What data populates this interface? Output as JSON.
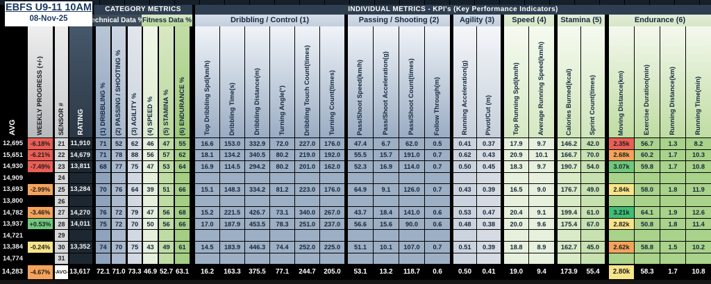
{
  "card": {
    "title": "EBFS U9-11 10AM",
    "date": "08-Nov-25"
  },
  "headers": {
    "category_metrics": "CATEGORY  METRICS",
    "individual_metrics": "INDIVIDUAL METRICS - KPI's (Key Performance Indicators)",
    "technical_data": "Technical Data %",
    "fitness_data": "Fitness Data %"
  },
  "groups": [
    {
      "id": "dribbling",
      "label": "Dribbling / Control (1)"
    },
    {
      "id": "passing",
      "label": "Passing / Shooting (2)"
    },
    {
      "id": "agility",
      "label": "Agility (3)"
    },
    {
      "id": "speed",
      "label": "Speed (4)"
    },
    {
      "id": "stamina",
      "label": "Stamina (5)"
    },
    {
      "id": "endurance",
      "label": "Endurance (6)"
    }
  ],
  "left_columns": {
    "avg_label": "AVG",
    "progress_label": "WEEKLY PROGRESS (+/-)",
    "sensor_label": "SENSOR #",
    "rating_label": "RATING"
  },
  "columns": [
    {
      "id": "dribbling_pct",
      "label": "(1) DRIBBLING %"
    },
    {
      "id": "passing_pct",
      "label": "(2) PASSING / SHOOTING %"
    },
    {
      "id": "agility_pct",
      "label": "(3) AGILITY %"
    },
    {
      "id": "speed_pct",
      "label": "(4) SPEED %"
    },
    {
      "id": "stamina_pct",
      "label": "(5) STAMINA %"
    },
    {
      "id": "endurance_pct",
      "label": "(6) ENDURANCE %"
    },
    {
      "id": "top_drib_spd",
      "label": "Top Dribbling Spd(km/h)"
    },
    {
      "id": "drib_time",
      "label": "Dribbling Time(s)"
    },
    {
      "id": "drib_dist",
      "label": "Dribbling Distance(m)"
    },
    {
      "id": "turn_angle",
      "label": "Turning Angle(°)"
    },
    {
      "id": "touch_count",
      "label": "Dribbling Touch Count(times)"
    },
    {
      "id": "turn_count",
      "label": "Turning Count(times)"
    },
    {
      "id": "pass_speed",
      "label": "Pass/Shoot Speed(km/h)"
    },
    {
      "id": "pass_accel",
      "label": "Pass/Shoot Acceleration(g)"
    },
    {
      "id": "pass_count",
      "label": "Pass/Shoot Count(times)"
    },
    {
      "id": "follow_through",
      "label": "Follow Through(m)"
    },
    {
      "id": "run_accel",
      "label": "Running Acceleration(g)"
    },
    {
      "id": "pivot_cut",
      "label": "Pivot/Cut (m)"
    },
    {
      "id": "top_run_spd",
      "label": "Top Running Spd(km/h)"
    },
    {
      "id": "avg_run_spd",
      "label": "Average Running Speed(km/h)"
    },
    {
      "id": "calories",
      "label": "Calories Burned(kcal)"
    },
    {
      "id": "sprint_count",
      "label": "Sprint Count(times)"
    },
    {
      "id": "moving_dist",
      "label": "Moving Distance(km)"
    },
    {
      "id": "ex_duration",
      "label": "Exercise Duration(min)"
    },
    {
      "id": "run_dist",
      "label": "Running Distance(km)"
    },
    {
      "id": "run_time",
      "label": "Running Time(min)"
    }
  ],
  "rows": [
    {
      "avg": "12,695",
      "progress": "-6.18%",
      "progress_status": "red",
      "sensor": "21",
      "rating": "11,910",
      "moving_status": "red",
      "values": [
        "71",
        "52",
        "62",
        "46",
        "47",
        "55",
        "16.6",
        "153.0",
        "332.9",
        "72.0",
        "227.0",
        "176.0",
        "47.4",
        "6.7",
        "62.0",
        "0.5",
        "0.41",
        "0.37",
        "17.9",
        "9.7",
        "146.2",
        "42.0",
        "2.35k",
        "56.7",
        "1.3",
        "8.2"
      ]
    },
    {
      "avg": "15,651",
      "progress": "-6.21%",
      "progress_status": "red",
      "sensor": "22",
      "rating": "14,679",
      "moving_status": "orange",
      "values": [
        "71",
        "78",
        "88",
        "56",
        "57",
        "62",
        "18.1",
        "134.2",
        "340.5",
        "80.2",
        "219.0",
        "192.0",
        "55.5",
        "15.7",
        "191.0",
        "0.7",
        "0.62",
        "0.43",
        "20.9",
        "10.1",
        "166.7",
        "70.0",
        "2.68k",
        "60.2",
        "1.7",
        "10.3"
      ]
    },
    {
      "avg": "14,930",
      "progress": "-7.49%",
      "progress_status": "red",
      "sensor": "23",
      "rating": "13,811",
      "moving_status": "green",
      "values": [
        "68",
        "77",
        "75",
        "47",
        "53",
        "64",
        "16.9",
        "114.5",
        "294.2",
        "80.2",
        "201.0",
        "162.0",
        "52.3",
        "16.9",
        "114.0",
        "0.7",
        "0.50",
        "0.45",
        "18.3",
        "9.7",
        "190.7",
        "54.0",
        "3.07k",
        "59.8",
        "1.7",
        "10.8"
      ]
    },
    {
      "avg": "14,909",
      "progress": "",
      "progress_status": "",
      "sensor": "24",
      "rating": "",
      "moving_status": "",
      "values": [
        "",
        "",
        "",
        "",
        "",
        "",
        "",
        "",
        "",
        "",
        "",
        "",
        "",
        "",
        "",
        "",
        "",
        "",
        "",
        "",
        "",
        "",
        "",
        "",
        "",
        ""
      ]
    },
    {
      "avg": "13,693",
      "progress": "-2.99%",
      "progress_status": "orange",
      "sensor": "25",
      "rating": "13,284",
      "moving_status": "yellow",
      "values": [
        "70",
        "76",
        "64",
        "39",
        "51",
        "66",
        "15.1",
        "148.3",
        "334.2",
        "81.2",
        "223.0",
        "176.0",
        "64.9",
        "9.1",
        "126.0",
        "0.7",
        "0.43",
        "0.39",
        "16.5",
        "9.0",
        "176.7",
        "49.0",
        "2.84k",
        "58.0",
        "1.8",
        "11.9"
      ]
    },
    {
      "avg": "13,800",
      "progress": "",
      "progress_status": "",
      "sensor": "26",
      "rating": "",
      "moving_status": "",
      "values": [
        "",
        "",
        "",
        "",
        "",
        "",
        "",
        "",
        "",
        "",
        "",
        "",
        "",
        "",
        "",
        "",
        "",
        "",
        "",
        "",
        "",
        "",
        "",
        "",
        "",
        ""
      ]
    },
    {
      "avg": "14,782",
      "progress": "-3.46%",
      "progress_status": "orange",
      "sensor": "27",
      "rating": "14,270",
      "moving_status": "strong_green",
      "values": [
        "76",
        "72",
        "79",
        "47",
        "56",
        "68",
        "15.2",
        "221.5",
        "426.7",
        "73.1",
        "340.0",
        "267.0",
        "43.7",
        "18.4",
        "141.0",
        "0.6",
        "0.53",
        "0.47",
        "20.4",
        "9.1",
        "199.4",
        "61.0",
        "3.21k",
        "64.1",
        "1.9",
        "12.6"
      ]
    },
    {
      "avg": "13,937",
      "progress": "+0.53%",
      "progress_status": "green",
      "sensor": "28",
      "rating": "14,011",
      "moving_status": "yellow",
      "values": [
        "75",
        "72",
        "70",
        "50",
        "56",
        "66",
        "17.0",
        "187.9",
        "453.5",
        "78.3",
        "251.0",
        "237.0",
        "56.6",
        "15.6",
        "90.0",
        "0.6",
        "0.48",
        "0.38",
        "20.0",
        "9.6",
        "175.4",
        "67.0",
        "2.82k",
        "50.8",
        "1.8",
        "11.4"
      ]
    },
    {
      "avg": "14,721",
      "progress": "",
      "progress_status": "",
      "sensor": "29",
      "rating": "",
      "moving_status": "",
      "values": [
        "",
        "",
        "",
        "",
        "",
        "",
        "",
        "",
        "",
        "",
        "",
        "",
        "",
        "",
        "",
        "",
        "",
        "",
        "",
        "",
        "",
        "",
        "",
        "",
        "",
        ""
      ]
    },
    {
      "avg": "13,384",
      "progress": "-0.24%",
      "progress_status": "yellow",
      "sensor": "30",
      "rating": "13,352",
      "moving_status": "orange",
      "values": [
        "74",
        "70",
        "75",
        "43",
        "49",
        "61",
        "14.5",
        "183.9",
        "446.3",
        "74.4",
        "252.0",
        "225.0",
        "51.1",
        "10.1",
        "107.0",
        "0.7",
        "0.51",
        "0.39",
        "18.8",
        "8.9",
        "162.7",
        "45.0",
        "2.62k",
        "58.8",
        "1.5",
        "10.2"
      ]
    },
    {
      "avg": "14,774",
      "progress": "",
      "progress_status": "",
      "sensor": "31",
      "rating": "",
      "moving_status": "",
      "values": [
        "",
        "",
        "",
        "",
        "",
        "",
        "",
        "",
        "",
        "",
        "",
        "",
        "",
        "",
        "",
        "",
        "",
        "",
        "",
        "",
        "",
        "",
        "",
        "",
        "",
        ""
      ]
    }
  ],
  "avg_row": {
    "avg": "14,283",
    "progress": "-4.67%",
    "progress_status": "orange",
    "sensor": "-AVG-",
    "rating": "13,617",
    "moving_status": "yellow",
    "values": [
      "72.1",
      "71.0",
      "73.3",
      "46.9",
      "52.7",
      "63.1",
      "16.2",
      "163.3",
      "375.5",
      "77.1",
      "244.7",
      "205.0",
      "53.1",
      "13.2",
      "118.7",
      "0.6",
      "0.50",
      "0.41",
      "19.0",
      "9.4",
      "173.9",
      "55.4",
      "2.80k",
      "58.3",
      "1.7",
      "10.8"
    ]
  },
  "colors": {
    "header_bar": "#2F3E50",
    "technical_header": "#3C4B5A",
    "status": {
      "red": "#EA5E55",
      "orange": "#F5A35B",
      "yellow": "#F6E488",
      "green": "#6FC87D",
      "strong_green": "#3FBE76"
    }
  }
}
